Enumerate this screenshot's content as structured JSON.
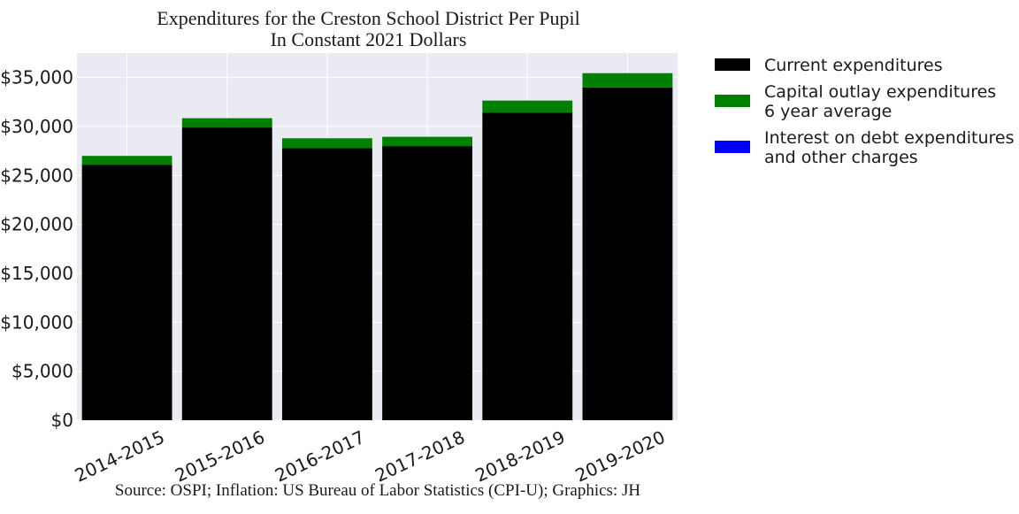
{
  "chart_data": {
    "type": "bar",
    "stacked": true,
    "title": [
      "Expenditures for the Creston School District Per Pupil",
      "In Constant 2021 Dollars"
    ],
    "xlabel": "",
    "ylabel": "",
    "categories": [
      "2014-2015",
      "2015-2016",
      "2016-2017",
      "2017-2018",
      "2018-2019",
      "2019-2020"
    ],
    "series": [
      {
        "name": "Current expenditures",
        "color": "#000000",
        "values": [
          26100,
          29900,
          27800,
          28000,
          31400,
          34000
        ]
      },
      {
        "name": "Capital outlay expenditures\n6 year average",
        "color": "#008000",
        "values": [
          900,
          950,
          1000,
          950,
          1250,
          1450
        ]
      },
      {
        "name": "Interest on debt expenditures\nand other charges",
        "color": "#0000ff",
        "values": [
          0,
          0,
          0,
          0,
          0,
          0
        ]
      }
    ],
    "ylim": [
      0,
      37500
    ],
    "yticks": [
      0,
      5000,
      10000,
      15000,
      20000,
      25000,
      30000,
      35000
    ],
    "ytick_labels": [
      "$0",
      "$5,000",
      "$10,000",
      "$15,000",
      "$20,000",
      "$25,000",
      "$30,000",
      "$35,000"
    ],
    "grid": true,
    "legend_placement": "outside-right",
    "background": "#eaeaf2",
    "source": "Source: OSPI; Inflation: US Bureau of Labor Statistics (CPI-U); Graphics: JH"
  }
}
